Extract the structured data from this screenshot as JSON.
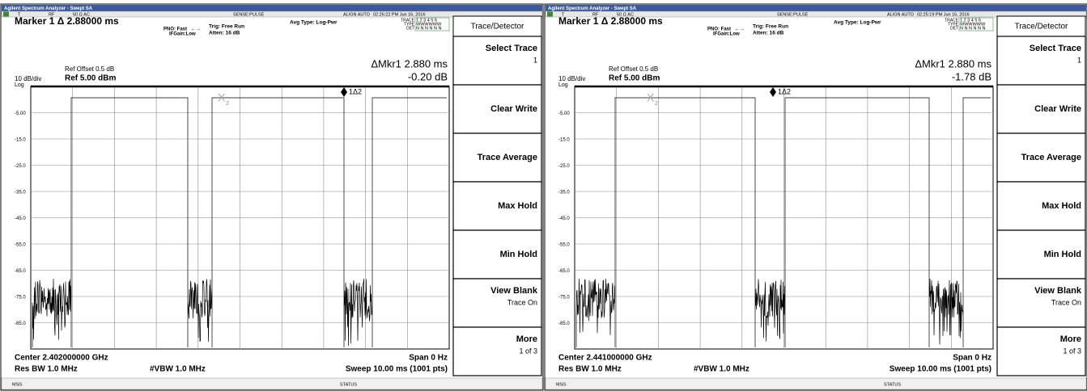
{
  "panels": [
    {
      "app_title": "Agilent Spectrum Analyzer - Swept SA",
      "status": {
        "mode": "T",
        "input": "RF",
        "impedance": "50 Ω  AC",
        "sense": "SENSE:PULSE",
        "align": "ALIGN AUTO",
        "datetime": "02:26:22 PM Jun 16, 2016"
      },
      "marker_readout": "Marker 1 Δ 2.88000 ms",
      "pno": "PNO: Fast",
      "ifgain": "IFGain:Low",
      "trig": "Trig: Free Run",
      "atten": "Atten: 16 dB",
      "avg_type": "Avg Type: Log-Pwr",
      "trace_table": {
        "trace": "TRACE",
        "trace_vals": "1 2 3 4 5 6",
        "type": "TYPE",
        "type_vals": "WWWWWW",
        "det": "DET",
        "det_vals": "N N N N N N"
      },
      "ref_offset": "Ref Offset 0.5 dB",
      "scale": "10 dB/div",
      "ref_level": "Ref 5.00 dBm",
      "scale_type": "Log",
      "delta_marker": "ΔMkr1 2.880 ms",
      "delta_value": "-0.20 dB",
      "y_labels": [
        "-5.00",
        "-15.0",
        "-25.0",
        "-35.0",
        "-45.0",
        "-55.0",
        "-65.0",
        "-75.0",
        "-85.0"
      ],
      "markers": {
        "x_marker": "X",
        "x_marker_ref": "2",
        "delta_marker_label": "1Δ2"
      },
      "center": "Center 2.402000000 GHz",
      "span": "Span 0 Hz",
      "res_bw": "Res BW 1.0 MHz",
      "vbw": "#VBW 1.0 MHz",
      "sweep": "Sweep  10.00 ms (1001 pts)",
      "msg": "MSG",
      "status_label": "STATUS",
      "menu_title": "Trace/Detector",
      "softkeys": [
        {
          "label": "Select Trace",
          "sub": "1"
        },
        {
          "label": "Clear Write"
        },
        {
          "label": "Trace Average"
        },
        {
          "label": "Max Hold"
        },
        {
          "label": "Min Hold"
        },
        {
          "label": "View Blank",
          "sub": "Trace On"
        },
        {
          "label": "More",
          "sub": "1 of 3"
        }
      ]
    },
    {
      "app_title": "Agilent Spectrum Analyzer - Swept SA",
      "status": {
        "mode": "T",
        "input": "RF",
        "impedance": "50 Ω  AC",
        "sense": "SENSE:PULSE",
        "align": "ALIGN AUTO",
        "datetime": "02:25:19 PM Jun 16, 2016"
      },
      "marker_readout": "Marker 1 Δ 2.88000 ms",
      "pno": "PNO: Fast",
      "ifgain": "IFGain:Low",
      "trig": "Trig: Free Run",
      "atten": "Atten: 16 dB",
      "avg_type": "Avg Type: Log-Pwr",
      "trace_table": {
        "trace": "TRACE",
        "trace_vals": "1 2 3 4 5 6",
        "type": "TYPE",
        "type_vals": "WWWWWW",
        "det": "DET",
        "det_vals": "N N N N N N"
      },
      "ref_offset": "Ref Offset 0.5 dB",
      "scale": "10 dB/div",
      "ref_level": "Ref 5.00 dBm",
      "scale_type": "Log",
      "delta_marker": "ΔMkr1 2.880 ms",
      "delta_value": "-1.78 dB",
      "y_labels": [
        "-5.00",
        "-15.0",
        "-25.0",
        "-35.0",
        "-45.0",
        "-55.0",
        "-65.0",
        "-75.0",
        "-85.0"
      ],
      "markers": {
        "x_marker": "X",
        "x_marker_ref": "2",
        "delta_marker_label": "1Δ2"
      },
      "center": "Center 2.441000000 GHz",
      "span": "Span 0 Hz",
      "res_bw": "Res BW 1.0 MHz",
      "vbw": "#VBW 1.0 MHz",
      "sweep": "Sweep  10.00 ms (1001 pts)",
      "msg": "MSG",
      "status_label": "STATUS",
      "menu_title": "Trace/Detector",
      "softkeys": [
        {
          "label": "Select Trace",
          "sub": "1"
        },
        {
          "label": "Clear Write"
        },
        {
          "label": "Trace Average"
        },
        {
          "label": "Max Hold"
        },
        {
          "label": "Min Hold"
        },
        {
          "label": "View Blank",
          "sub": "Trace On"
        },
        {
          "label": "More",
          "sub": "1 of 3"
        }
      ]
    }
  ]
}
